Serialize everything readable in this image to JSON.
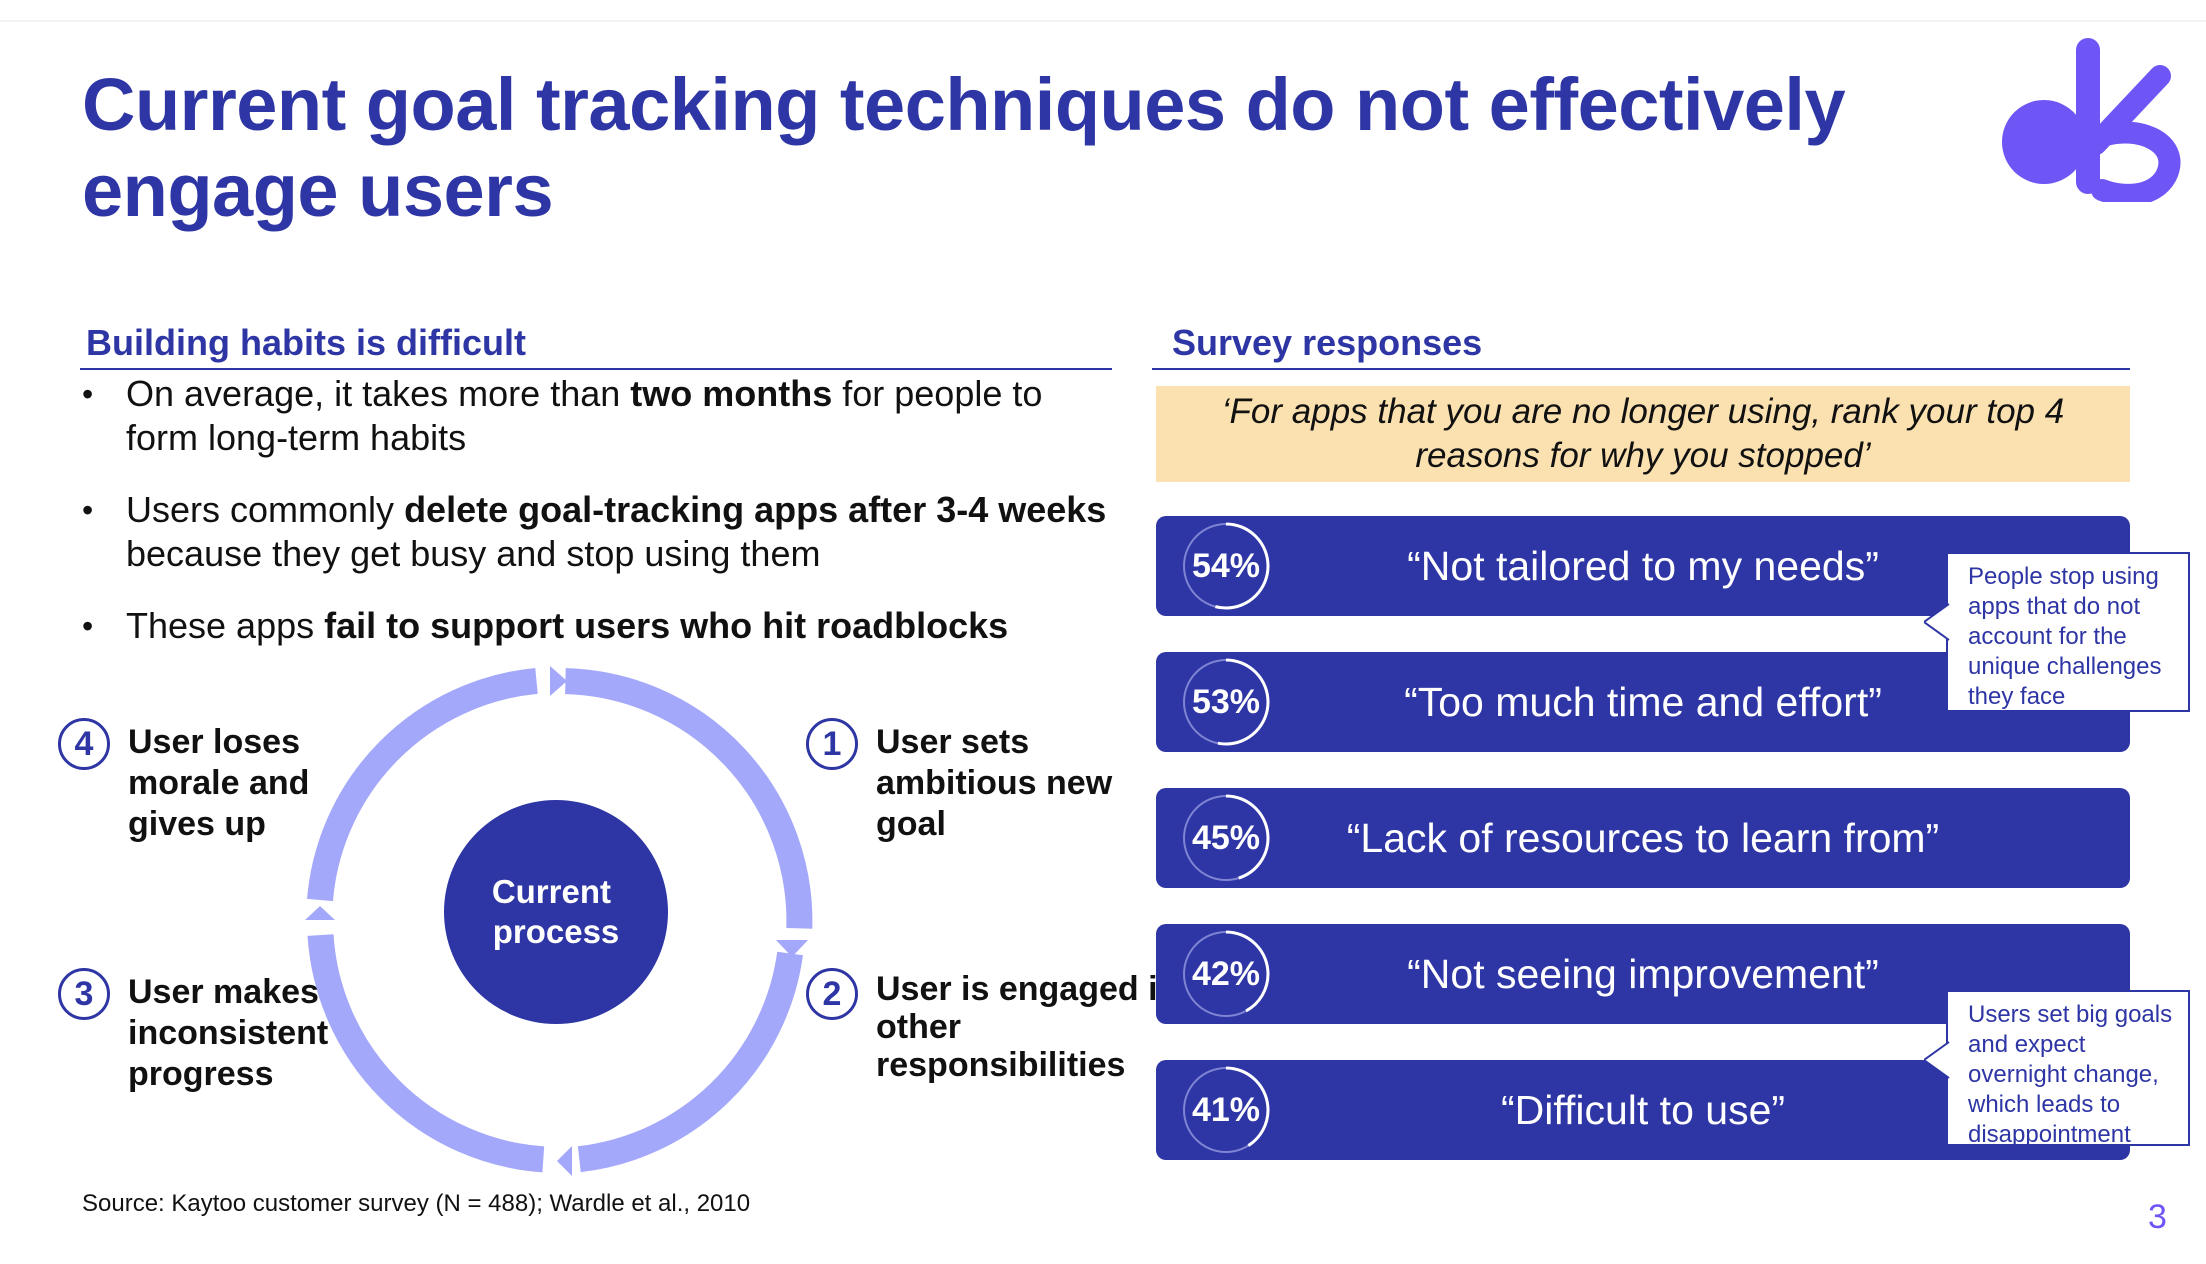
{
  "title": "Current goal tracking techniques do not effectively engage users",
  "left": {
    "heading": "Building habits is difficult",
    "bullets": [
      {
        "pre": "On average, it takes more than ",
        "bold": "two months",
        "post": " for people to form long-term habits"
      },
      {
        "pre": "Users commonly ",
        "bold": "delete goal-tracking apps after 3-4 weeks",
        "post": " because they get busy and stop using them"
      },
      {
        "pre": "These apps ",
        "bold": "fail to support users who hit roadblocks",
        "post": ""
      }
    ],
    "cycle": {
      "center_label": "Current process",
      "steps": [
        {
          "num": "1",
          "label": "User sets ambitious new goal"
        },
        {
          "num": "2",
          "label": "User is engaged in other responsibilities"
        },
        {
          "num": "3",
          "label": "User makes inconsistent progress"
        },
        {
          "num": "4",
          "label": "User loses morale and gives up"
        }
      ]
    },
    "source": "Source: Kaytoo customer survey (N = 488); Wardle et al., 2010"
  },
  "right": {
    "heading": "Survey responses",
    "question": "‘For apps that you are no longer using, rank your top 4 reasons for why you stopped’",
    "responses": [
      {
        "pct": "54%",
        "value": 54,
        "quote": "“Not tailored to my needs”"
      },
      {
        "pct": "53%",
        "value": 53,
        "quote": "“Too much time and effort”"
      },
      {
        "pct": "45%",
        "value": 45,
        "quote": "“Lack of resources to learn from”"
      },
      {
        "pct": "42%",
        "value": 42,
        "quote": "“Not seeing improvement”"
      },
      {
        "pct": "41%",
        "value": 41,
        "quote": "“Difficult to use”"
      }
    ],
    "callouts": [
      "People stop using apps that do not account for the unique challenges they face",
      "Users set big goals and expect overnight change, which leads to disappointment"
    ]
  },
  "page_number": "3",
  "logo": {
    "icon": "kaytoo-logo-icon"
  },
  "colors": {
    "primary": "#2e35a4",
    "ring": "#a4a8fb",
    "highlight": "#fbe1b0",
    "logo": "#6e56f6"
  }
}
